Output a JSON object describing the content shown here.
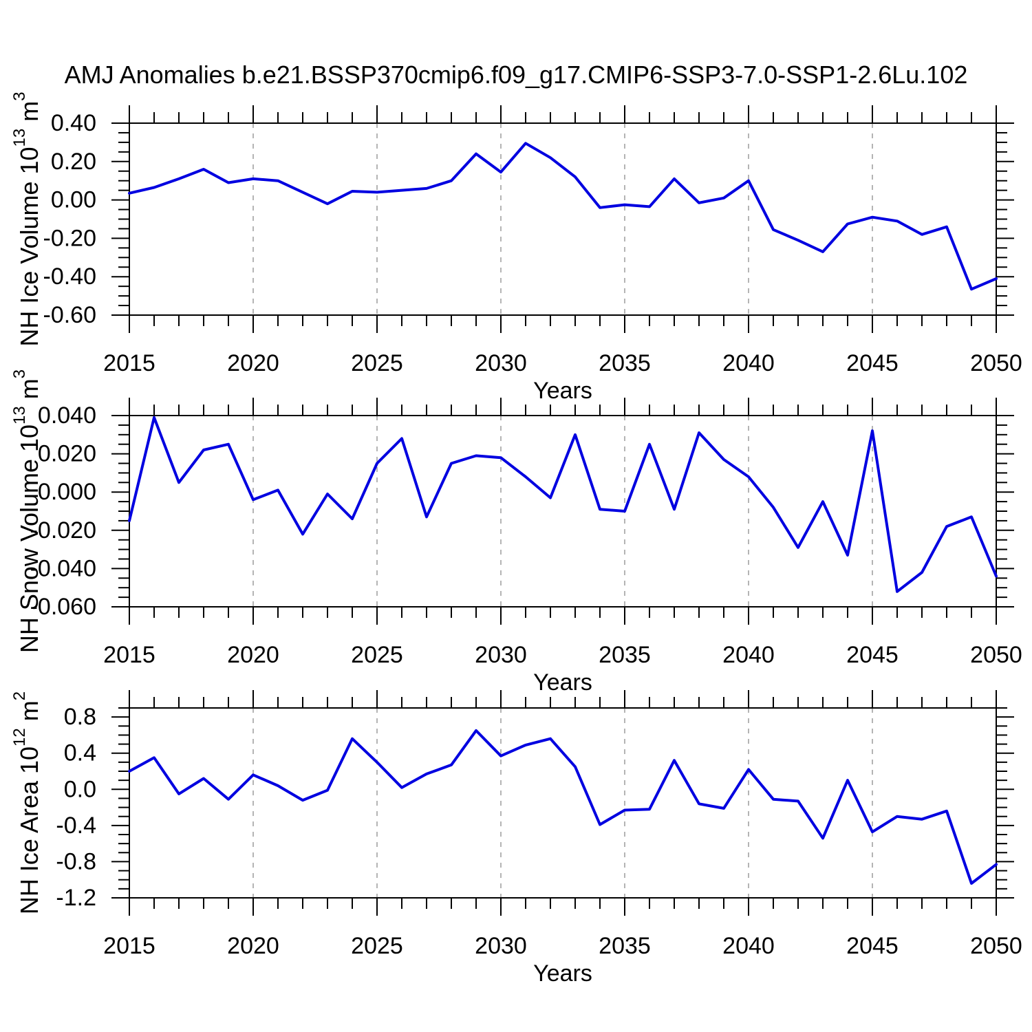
{
  "figure": {
    "title": "AMJ Anomalies b.e21.BSSP370cmip6.f09_g17.CMIP6-SSP3-7.0-SSP1-2.6Lu.102"
  },
  "colors": {
    "line": "#0000e0",
    "grid": "#9c9c9c",
    "axis": "#000000",
    "background": "#ffffff"
  },
  "chart_data": [
    {
      "type": "line",
      "name": "nh-ice-volume",
      "ylabel": "NH Ice Volume 10^13 m^3",
      "ylabel_parts": [
        {
          "text": "NH Ice Volume 10"
        },
        {
          "text": "13",
          "sup": true
        },
        {
          "text": " m"
        },
        {
          "text": "3",
          "sup": true
        }
      ],
      "xlabel": "Years",
      "xlim": [
        2015,
        2050
      ],
      "ylim": [
        -0.6,
        0.4
      ],
      "xticks": [
        2015,
        2020,
        2025,
        2030,
        2035,
        2040,
        2045,
        2050
      ],
      "xtick_labels": [
        "2015",
        "2020",
        "2025",
        "2030",
        "2035",
        "2040",
        "2045",
        "2050"
      ],
      "x_minor_step": 1,
      "yticks": [
        0.4,
        0.2,
        0.0,
        -0.2,
        -0.4,
        -0.6
      ],
      "ytick_labels": [
        "0.40",
        "0.20",
        "0.00",
        "-0.20",
        "-0.40",
        "-0.60"
      ],
      "y_minor_step": 0.05,
      "grid_x": [
        2020,
        2025,
        2030,
        2035,
        2040,
        2045
      ],
      "grid_on": "x-major-dashed",
      "legend": "none",
      "x": [
        2015,
        2016,
        2017,
        2018,
        2019,
        2020,
        2021,
        2022,
        2023,
        2024,
        2025,
        2026,
        2027,
        2028,
        2029,
        2030,
        2031,
        2032,
        2033,
        2034,
        2035,
        2036,
        2037,
        2038,
        2039,
        2040,
        2041,
        2042,
        2043,
        2044,
        2045,
        2046,
        2047,
        2048,
        2049,
        2050
      ],
      "values": [
        0.035,
        0.065,
        0.11,
        0.16,
        0.09,
        0.11,
        0.1,
        0.04,
        -0.02,
        0.045,
        0.04,
        0.05,
        0.06,
        0.1,
        0.24,
        0.145,
        0.295,
        0.22,
        0.12,
        -0.04,
        -0.025,
        -0.035,
        0.11,
        -0.015,
        0.01,
        0.1,
        -0.155,
        -0.21,
        -0.27,
        -0.125,
        -0.09,
        -0.11,
        -0.18,
        -0.14,
        -0.465,
        -0.41
      ]
    },
    {
      "type": "line",
      "name": "nh-snow-volume",
      "ylabel": "NH Snow Volume 10^13 m^3",
      "ylabel_parts": [
        {
          "text": "NH Snow Volume 10"
        },
        {
          "text": "13",
          "sup": true
        },
        {
          "text": " m"
        },
        {
          "text": "3",
          "sup": true
        }
      ],
      "xlabel": "Years",
      "xlim": [
        2015,
        2050
      ],
      "ylim": [
        -0.06,
        0.04
      ],
      "xticks": [
        2015,
        2020,
        2025,
        2030,
        2035,
        2040,
        2045,
        2050
      ],
      "xtick_labels": [
        "2015",
        "2020",
        "2025",
        "2030",
        "2035",
        "2040",
        "2045",
        "2050"
      ],
      "x_minor_step": 1,
      "yticks": [
        0.04,
        0.02,
        0.0,
        -0.02,
        -0.04,
        -0.06
      ],
      "ytick_labels": [
        "0.040",
        "0.020",
        "0.000",
        "-0.020",
        "-0.040",
        "-0.060"
      ],
      "y_minor_step": 0.005,
      "grid_x": [
        2020,
        2025,
        2030,
        2035,
        2040,
        2045
      ],
      "grid_on": "x-major-dashed",
      "legend": "none",
      "x": [
        2015,
        2016,
        2017,
        2018,
        2019,
        2020,
        2021,
        2022,
        2023,
        2024,
        2025,
        2026,
        2027,
        2028,
        2029,
        2030,
        2031,
        2032,
        2033,
        2034,
        2035,
        2036,
        2037,
        2038,
        2039,
        2040,
        2041,
        2042,
        2043,
        2044,
        2045,
        2046,
        2047,
        2048,
        2049,
        2050
      ],
      "values": [
        -0.015,
        0.039,
        0.005,
        0.022,
        0.025,
        -0.004,
        0.001,
        -0.022,
        -0.001,
        -0.014,
        0.015,
        0.028,
        -0.013,
        0.015,
        0.019,
        0.018,
        0.008,
        -0.003,
        0.03,
        -0.009,
        -0.01,
        0.025,
        -0.009,
        0.031,
        0.017,
        0.008,
        -0.008,
        -0.029,
        -0.005,
        -0.033,
        0.032,
        -0.052,
        -0.042,
        -0.018,
        -0.013,
        -0.044
      ]
    },
    {
      "type": "line",
      "name": "nh-ice-area",
      "ylabel": "NH Ice Area 10^12 m^2",
      "ylabel_parts": [
        {
          "text": "NH Ice Area 10"
        },
        {
          "text": "12",
          "sup": true
        },
        {
          "text": " m"
        },
        {
          "text": "2",
          "sup": true
        }
      ],
      "xlabel": "Years",
      "xlim": [
        2015,
        2050
      ],
      "ylim": [
        -1.2,
        0.9
      ],
      "xticks": [
        2015,
        2020,
        2025,
        2030,
        2035,
        2040,
        2045,
        2050
      ],
      "xtick_labels": [
        "2015",
        "2020",
        "2025",
        "2030",
        "2035",
        "2040",
        "2045",
        "2050"
      ],
      "x_minor_step": 1,
      "yticks": [
        0.8,
        0.4,
        0.0,
        -0.4,
        -0.8,
        -1.2
      ],
      "ytick_labels": [
        "0.8",
        "0.4",
        "0.0",
        "-0.4",
        "-0.8",
        "-1.2"
      ],
      "y_minor_step": 0.1,
      "grid_x": [
        2020,
        2025,
        2030,
        2035,
        2040,
        2045
      ],
      "grid_on": "x-major-dashed",
      "legend": "none",
      "x": [
        2015,
        2016,
        2017,
        2018,
        2019,
        2020,
        2021,
        2022,
        2023,
        2024,
        2025,
        2026,
        2027,
        2028,
        2029,
        2030,
        2031,
        2032,
        2033,
        2034,
        2035,
        2036,
        2037,
        2038,
        2039,
        2040,
        2041,
        2042,
        2043,
        2044,
        2045,
        2046,
        2047,
        2048,
        2049,
        2050
      ],
      "values": [
        0.2,
        0.35,
        -0.05,
        0.12,
        -0.11,
        0.16,
        0.04,
        -0.12,
        -0.01,
        0.56,
        0.3,
        0.02,
        0.17,
        0.27,
        0.65,
        0.37,
        0.49,
        0.56,
        0.25,
        -0.39,
        -0.23,
        -0.22,
        0.32,
        -0.16,
        -0.21,
        0.22,
        -0.11,
        -0.13,
        -0.54,
        0.1,
        -0.47,
        -0.3,
        -0.33,
        -0.24,
        -1.04,
        -0.83
      ]
    }
  ]
}
